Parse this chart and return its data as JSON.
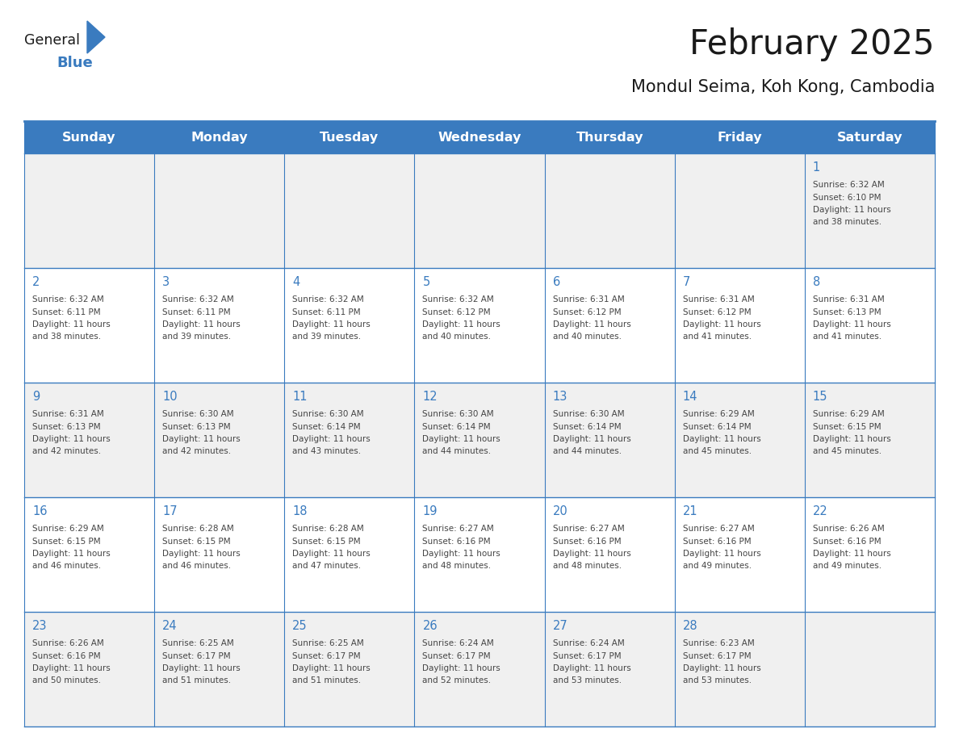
{
  "title": "February 2025",
  "subtitle": "Mondul Seima, Koh Kong, Cambodia",
  "days_of_week": [
    "Sunday",
    "Monday",
    "Tuesday",
    "Wednesday",
    "Thursday",
    "Friday",
    "Saturday"
  ],
  "header_bg": "#3a7bbf",
  "header_text": "#ffffff",
  "row_bg_odd": "#f0f0f0",
  "row_bg_even": "#ffffff",
  "border_color": "#3a7bbf",
  "title_color": "#1a1a1a",
  "subtitle_color": "#1a1a1a",
  "day_number_color": "#3a7bbf",
  "cell_text_color": "#444444",
  "logo_general_color": "#1a1a1a",
  "logo_blue_color": "#3a7bbf",
  "calendar_data": {
    "1": {
      "sunrise": "6:32 AM",
      "sunset": "6:10 PM",
      "daylight": "11 hours and 38 minutes.",
      "col": 6,
      "row": 0
    },
    "2": {
      "sunrise": "6:32 AM",
      "sunset": "6:11 PM",
      "daylight": "11 hours and 38 minutes.",
      "col": 0,
      "row": 1
    },
    "3": {
      "sunrise": "6:32 AM",
      "sunset": "6:11 PM",
      "daylight": "11 hours and 39 minutes.",
      "col": 1,
      "row": 1
    },
    "4": {
      "sunrise": "6:32 AM",
      "sunset": "6:11 PM",
      "daylight": "11 hours and 39 minutes.",
      "col": 2,
      "row": 1
    },
    "5": {
      "sunrise": "6:32 AM",
      "sunset": "6:12 PM",
      "daylight": "11 hours and 40 minutes.",
      "col": 3,
      "row": 1
    },
    "6": {
      "sunrise": "6:31 AM",
      "sunset": "6:12 PM",
      "daylight": "11 hours and 40 minutes.",
      "col": 4,
      "row": 1
    },
    "7": {
      "sunrise": "6:31 AM",
      "sunset": "6:12 PM",
      "daylight": "11 hours and 41 minutes.",
      "col": 5,
      "row": 1
    },
    "8": {
      "sunrise": "6:31 AM",
      "sunset": "6:13 PM",
      "daylight": "11 hours and 41 minutes.",
      "col": 6,
      "row": 1
    },
    "9": {
      "sunrise": "6:31 AM",
      "sunset": "6:13 PM",
      "daylight": "11 hours and 42 minutes.",
      "col": 0,
      "row": 2
    },
    "10": {
      "sunrise": "6:30 AM",
      "sunset": "6:13 PM",
      "daylight": "11 hours and 42 minutes.",
      "col": 1,
      "row": 2
    },
    "11": {
      "sunrise": "6:30 AM",
      "sunset": "6:14 PM",
      "daylight": "11 hours and 43 minutes.",
      "col": 2,
      "row": 2
    },
    "12": {
      "sunrise": "6:30 AM",
      "sunset": "6:14 PM",
      "daylight": "11 hours and 44 minutes.",
      "col": 3,
      "row": 2
    },
    "13": {
      "sunrise": "6:30 AM",
      "sunset": "6:14 PM",
      "daylight": "11 hours and 44 minutes.",
      "col": 4,
      "row": 2
    },
    "14": {
      "sunrise": "6:29 AM",
      "sunset": "6:14 PM",
      "daylight": "11 hours and 45 minutes.",
      "col": 5,
      "row": 2
    },
    "15": {
      "sunrise": "6:29 AM",
      "sunset": "6:15 PM",
      "daylight": "11 hours and 45 minutes.",
      "col": 6,
      "row": 2
    },
    "16": {
      "sunrise": "6:29 AM",
      "sunset": "6:15 PM",
      "daylight": "11 hours and 46 minutes.",
      "col": 0,
      "row": 3
    },
    "17": {
      "sunrise": "6:28 AM",
      "sunset": "6:15 PM",
      "daylight": "11 hours and 46 minutes.",
      "col": 1,
      "row": 3
    },
    "18": {
      "sunrise": "6:28 AM",
      "sunset": "6:15 PM",
      "daylight": "11 hours and 47 minutes.",
      "col": 2,
      "row": 3
    },
    "19": {
      "sunrise": "6:27 AM",
      "sunset": "6:16 PM",
      "daylight": "11 hours and 48 minutes.",
      "col": 3,
      "row": 3
    },
    "20": {
      "sunrise": "6:27 AM",
      "sunset": "6:16 PM",
      "daylight": "11 hours and 48 minutes.",
      "col": 4,
      "row": 3
    },
    "21": {
      "sunrise": "6:27 AM",
      "sunset": "6:16 PM",
      "daylight": "11 hours and 49 minutes.",
      "col": 5,
      "row": 3
    },
    "22": {
      "sunrise": "6:26 AM",
      "sunset": "6:16 PM",
      "daylight": "11 hours and 49 minutes.",
      "col": 6,
      "row": 3
    },
    "23": {
      "sunrise": "6:26 AM",
      "sunset": "6:16 PM",
      "daylight": "11 hours and 50 minutes.",
      "col": 0,
      "row": 4
    },
    "24": {
      "sunrise": "6:25 AM",
      "sunset": "6:17 PM",
      "daylight": "11 hours and 51 minutes.",
      "col": 1,
      "row": 4
    },
    "25": {
      "sunrise": "6:25 AM",
      "sunset": "6:17 PM",
      "daylight": "11 hours and 51 minutes.",
      "col": 2,
      "row": 4
    },
    "26": {
      "sunrise": "6:24 AM",
      "sunset": "6:17 PM",
      "daylight": "11 hours and 52 minutes.",
      "col": 3,
      "row": 4
    },
    "27": {
      "sunrise": "6:24 AM",
      "sunset": "6:17 PM",
      "daylight": "11 hours and 53 minutes.",
      "col": 4,
      "row": 4
    },
    "28": {
      "sunrise": "6:23 AM",
      "sunset": "6:17 PM",
      "daylight": "11 hours and 53 minutes.",
      "col": 5,
      "row": 4
    }
  }
}
